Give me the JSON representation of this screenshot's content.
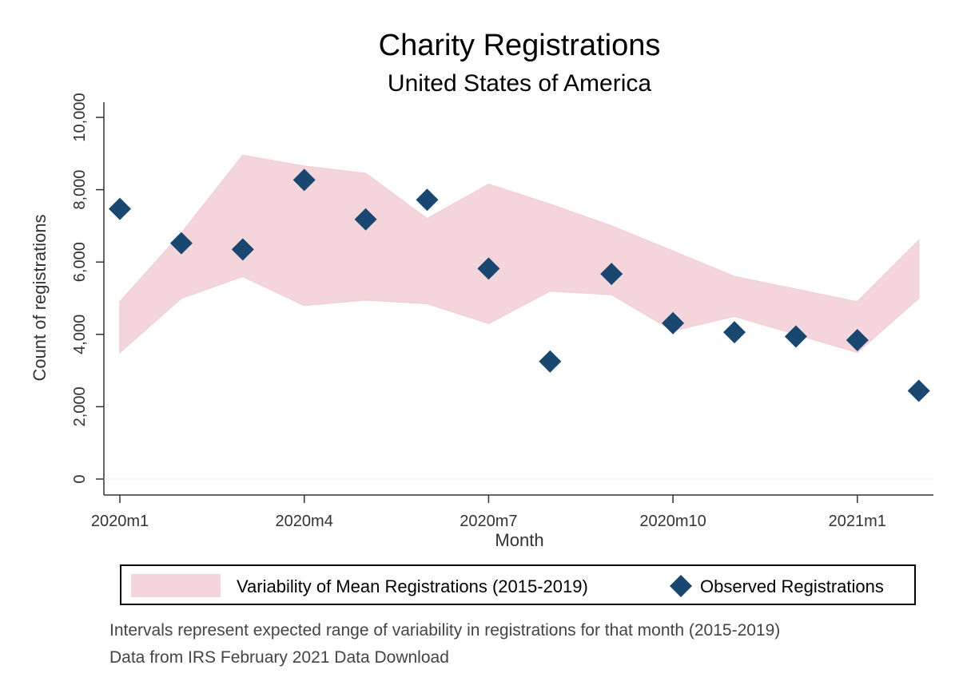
{
  "colors": {
    "band_fill": "#f5d5dc",
    "band_edge": "#f3cfd8",
    "marker": "#1a4770",
    "axis": "#333333"
  },
  "chart_data": {
    "type": "scatter",
    "title": "Charity Registrations",
    "subtitle": "United States of America",
    "xlabel": "Month",
    "ylabel": "Count of registrations",
    "months": [
      "2020m1",
      "2020m2",
      "2020m3",
      "2020m4",
      "2020m5",
      "2020m6",
      "2020m7",
      "2020m8",
      "2020m9",
      "2020m10",
      "2020m11",
      "2020m12",
      "2021m1",
      "2021m2"
    ],
    "x_ticks": [
      "2020m1",
      "2020m4",
      "2020m7",
      "2020m10",
      "2021m1"
    ],
    "y_ticks": [
      0,
      2000,
      4000,
      6000,
      8000,
      10000
    ],
    "y_tick_labels": [
      "0",
      "2,000",
      "4,000",
      "6,000",
      "8,000",
      "10,000"
    ],
    "ylim": [
      0,
      10000
    ],
    "grid": false,
    "legend_position": "bottom",
    "series": [
      {
        "name": "Variability of Mean Registrations (2015-2019)",
        "kind": "range-area",
        "lower": [
          3500,
          5000,
          5600,
          4800,
          4950,
          4850,
          4300,
          5200,
          5100,
          4100,
          4500,
          4000,
          3500,
          5000
        ],
        "upper": [
          4900,
          6800,
          8950,
          8650,
          8450,
          7200,
          8150,
          7600,
          7000,
          6300,
          5600,
          5250,
          4900,
          6600
        ]
      },
      {
        "name": "Observed Registrations",
        "kind": "markers",
        "values": [
          7470,
          6520,
          6350,
          8270,
          7180,
          7720,
          5820,
          3250,
          5670,
          4310,
          4060,
          3940,
          3840,
          2440
        ]
      }
    ]
  },
  "notes": [
    "Intervals represent expected range of variability in registrations for that month (2015-2019)",
    "Data from IRS February 2021 Data Download"
  ]
}
